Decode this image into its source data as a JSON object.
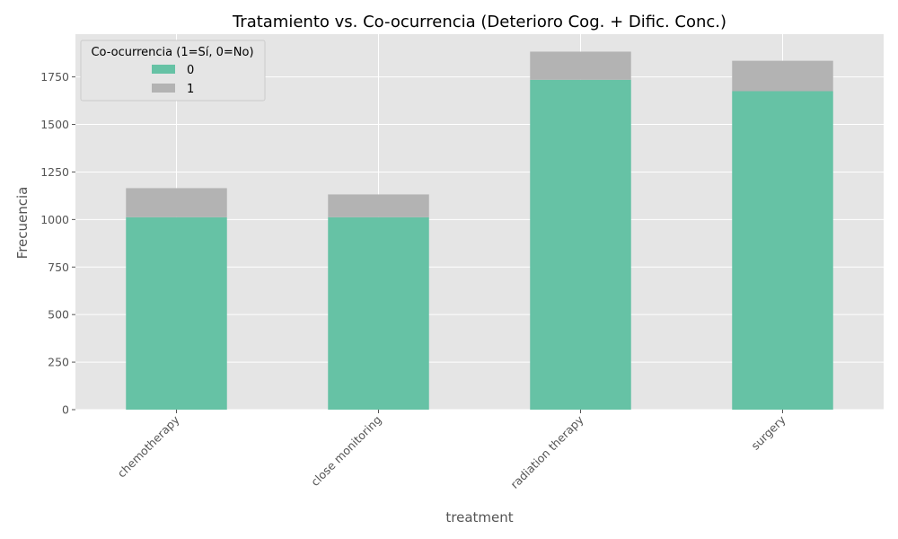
{
  "chart_data": {
    "type": "bar",
    "stacked": true,
    "title": "Tratamiento vs. Co-ocurrencia (Deterioro Cog. + Dific. Conc.)",
    "xlabel": "treatment",
    "ylabel": "Frecuencia",
    "categories": [
      "chemotherapy",
      "close monitoring",
      "radiation therapy",
      "surgery"
    ],
    "series": [
      {
        "name": "0",
        "values": [
          1012,
          1012,
          1735,
          1675
        ],
        "color": "#66c2a5"
      },
      {
        "name": "1",
        "values": [
          153,
          120,
          148,
          160
        ],
        "color": "#b3b3b3"
      }
    ],
    "ylim": [
      0,
      1975
    ],
    "yticks": [
      0,
      250,
      500,
      750,
      1000,
      1250,
      1500,
      1750
    ],
    "grid": true,
    "legend": {
      "title": "Co-ocurrencia (1=Sí, 0=No)",
      "placement": "top-left"
    },
    "background": "#e5e5e5"
  }
}
